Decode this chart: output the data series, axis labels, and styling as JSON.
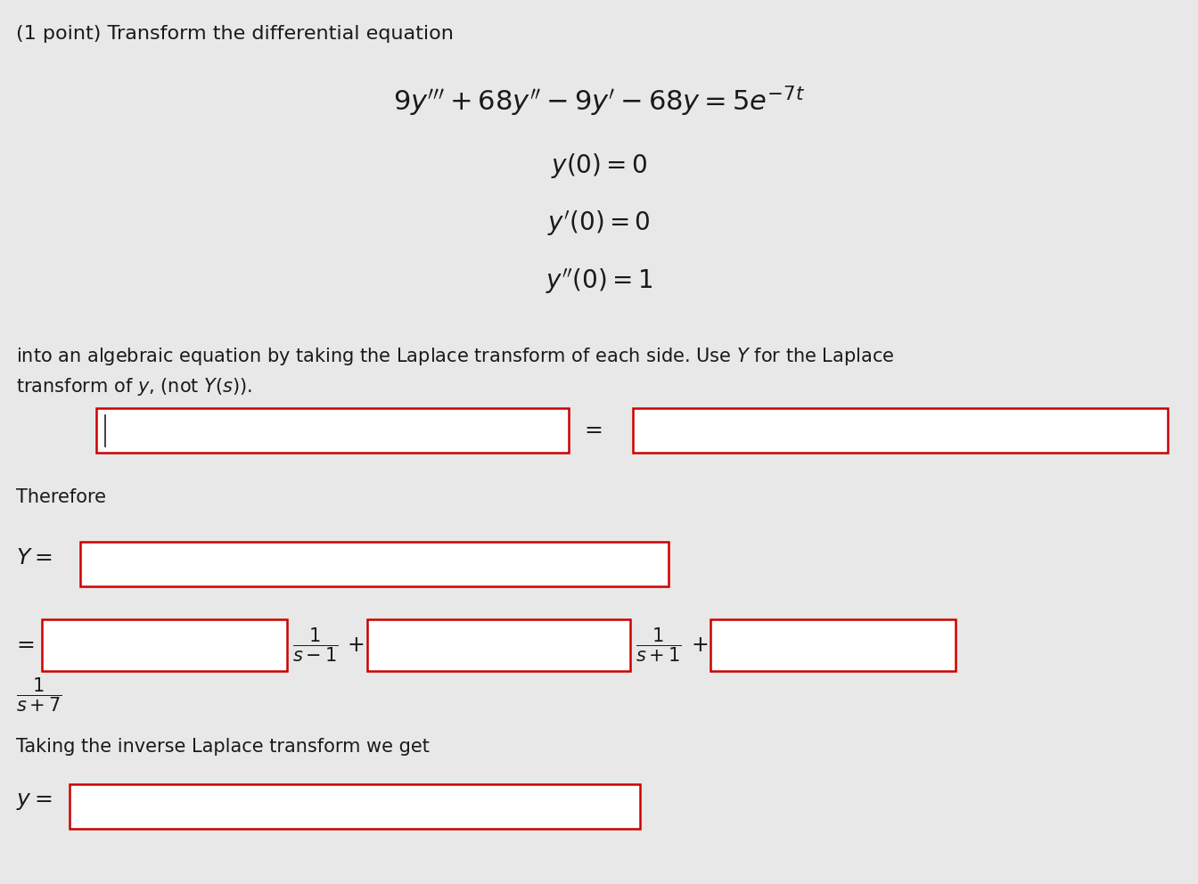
{
  "bg_color": "#e8e8e8",
  "text_color": "#1a1a1a",
  "box_border_color": "#cc0000",
  "box_fill_color": "#ffffff",
  "title": "(1 point) Transform the differential equation",
  "therefore": "Therefore",
  "taking": "Taking the inverse Laplace transform we get",
  "font_size_title": 16,
  "font_size_eq": 20,
  "font_size_body": 15,
  "font_size_small": 13
}
